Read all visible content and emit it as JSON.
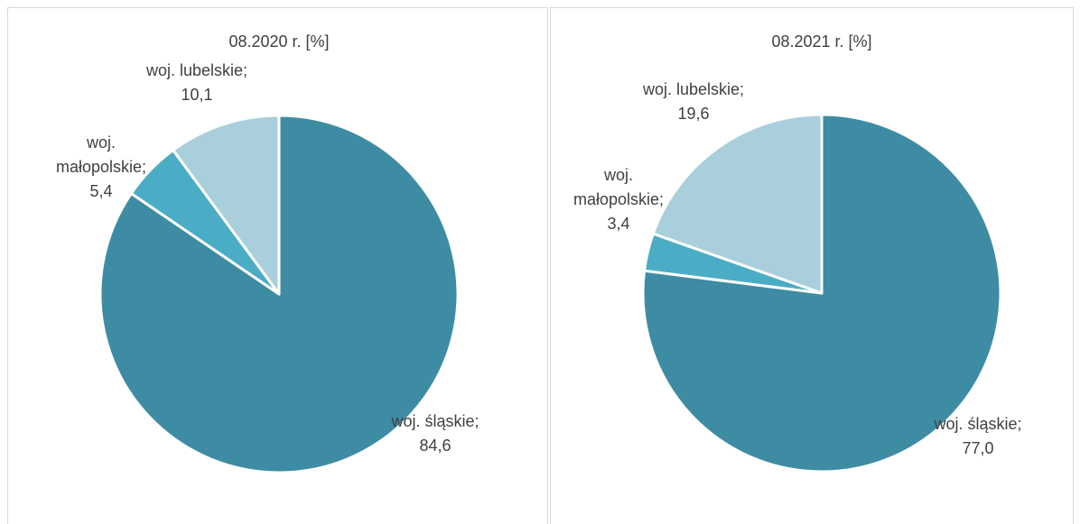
{
  "chart_data": [
    {
      "type": "pie",
      "title": "08.2020 r. [%]",
      "categories": [
        "woj. śląskie",
        "woj. małopolskie",
        "woj. lubelskie"
      ],
      "values": [
        84.6,
        5.4,
        10.1
      ],
      "value_labels": [
        "84,6",
        "5,4",
        "10,1"
      ],
      "colors": [
        "#3e8ca3",
        "#4bacc6",
        "#a9cfdc"
      ],
      "label_separator": ";"
    },
    {
      "type": "pie",
      "title": "08.2021 r. [%]",
      "categories": [
        "woj. śląskie",
        "woj. małopolskie",
        "woj. lubelskie"
      ],
      "values": [
        77.0,
        3.4,
        19.6
      ],
      "value_labels": [
        "77,0",
        "3,4",
        "19,6"
      ],
      "colors": [
        "#3e8ca3",
        "#4bacc6",
        "#a9cfdc"
      ],
      "label_separator": ";"
    }
  ]
}
